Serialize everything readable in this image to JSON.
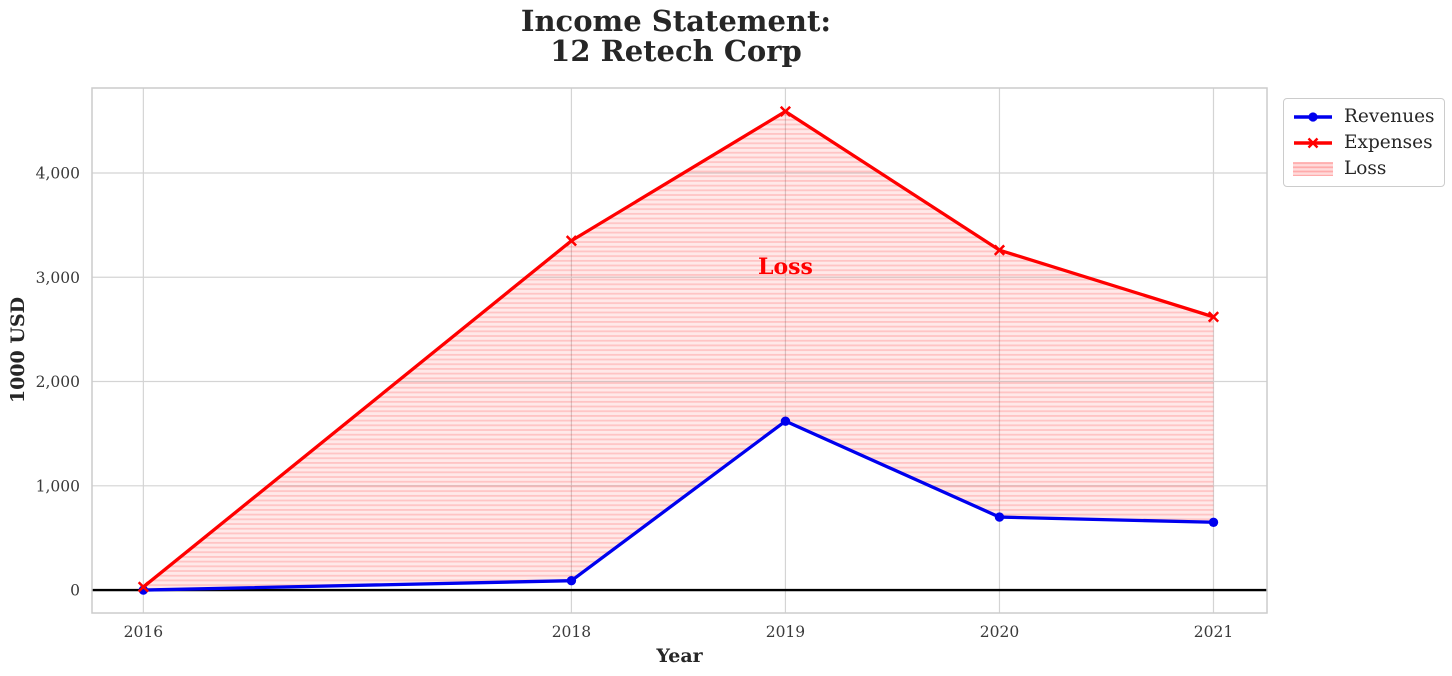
{
  "title": {
    "line1": "Income Statement:",
    "line2": "12 Retech Corp"
  },
  "chart_data": {
    "type": "line",
    "x": [
      2016,
      2018,
      2019,
      2020,
      2021
    ],
    "series": [
      {
        "name": "Revenues",
        "color": "#0000ee",
        "marker": "circle",
        "values": [
          0,
          90,
          1620,
          700,
          650
        ]
      },
      {
        "name": "Expenses",
        "color": "#ff0000",
        "marker": "x",
        "values": [
          30,
          3350,
          4590,
          3260,
          2620
        ]
      }
    ],
    "fill": {
      "label": "Loss",
      "between": [
        "Revenues",
        "Expenses"
      ],
      "color": "#ff0000",
      "style": "horizontal-hatch, translucent"
    },
    "annotation": {
      "text": "Loss",
      "x": 2019,
      "y": 3100
    },
    "xlabel": "Year",
    "ylabel": "1000 USD",
    "xticks": [
      2016,
      2018,
      2019,
      2020,
      2021
    ],
    "xtick_labels": [
      "2016",
      "2018",
      "2019",
      "2020",
      "2021"
    ],
    "yticks": [
      0,
      1000,
      2000,
      3000,
      4000
    ],
    "ytick_labels": [
      "0",
      "1,000",
      "2,000",
      "3,000",
      "4,000"
    ],
    "xlim": [
      2015.76,
      2021.25
    ],
    "ylim": [
      -220,
      4815
    ],
    "grid": true,
    "zero_line_y": 0,
    "legend": {
      "position": "upper-right outside plot",
      "entries": [
        "Revenues",
        "Expenses",
        "Loss"
      ]
    }
  },
  "colors": {
    "revenues": "#0000ee",
    "expenses": "#ff0000",
    "loss_fill_base": "rgba(255,0,0,0.085)",
    "loss_fill_line": "rgba(255,0,0,0.16)",
    "grid": "#d4d4d4",
    "spine": "#cccccc",
    "tick_text": "#3a3a3a",
    "zero_line": "#000000"
  }
}
